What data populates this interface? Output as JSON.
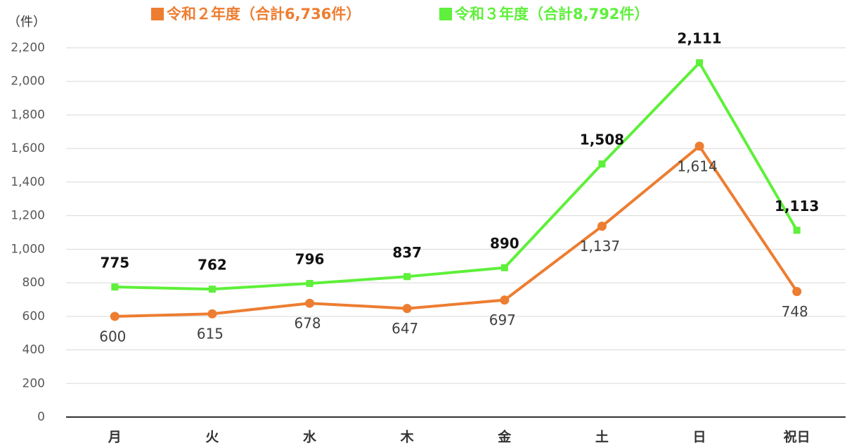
{
  "chart_data": {
    "type": "line",
    "y_unit_label": "（件）",
    "categories": [
      "月",
      "火",
      "水",
      "木",
      "金",
      "土",
      "日",
      "祝日"
    ],
    "series": [
      {
        "name": "令和２年度（合計6,736件）",
        "color": "#ed7d31",
        "values": [
          600,
          615,
          678,
          647,
          697,
          1137,
          1614,
          748
        ],
        "value_labels": [
          "600",
          "615",
          "678",
          "647",
          "697",
          "1,137",
          "1,614",
          "748"
        ]
      },
      {
        "name": "令和３年度（合計8,792件）",
        "color": "#5ef03a",
        "values": [
          775,
          762,
          796,
          837,
          890,
          1508,
          2111,
          1113
        ],
        "value_labels": [
          "775",
          "762",
          "796",
          "837",
          "890",
          "1,508",
          "2,111",
          "1,113"
        ]
      }
    ],
    "ylim": [
      0,
      2200
    ],
    "yticks": [
      0,
      200,
      400,
      600,
      800,
      {
        "value": 1000,
        "label": "1,000"
      },
      {
        "value": 1200,
        "label": "1,200"
      },
      {
        "value": 1400,
        "label": "1,400"
      },
      {
        "value": 1600,
        "label": "1,600"
      },
      {
        "value": 1800,
        "label": "1,800"
      },
      {
        "value": 2000,
        "label": "2,000"
      },
      {
        "value": 2200,
        "label": "2,200"
      }
    ],
    "grid": true
  }
}
